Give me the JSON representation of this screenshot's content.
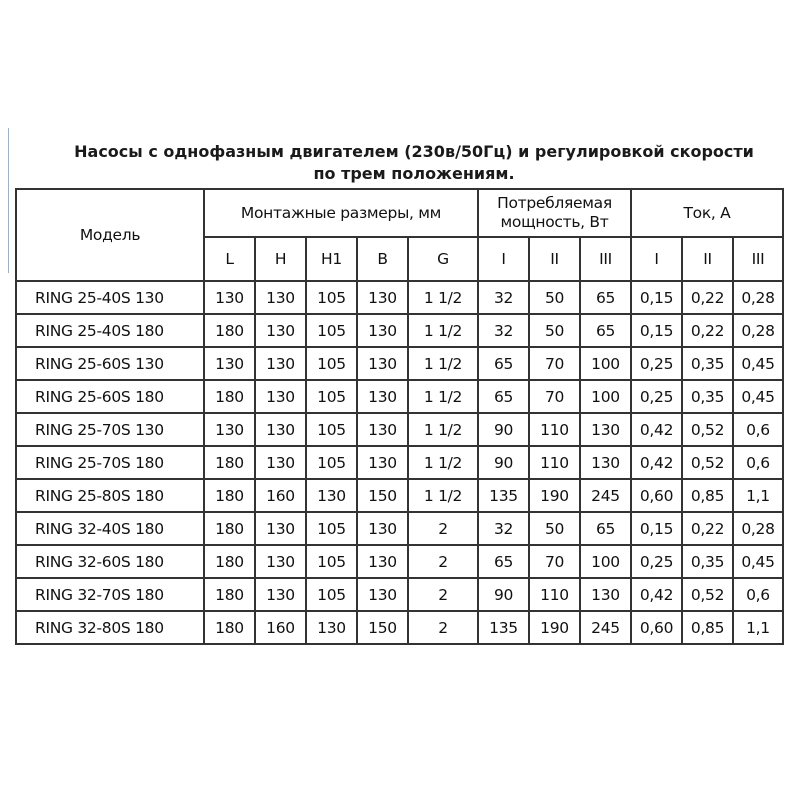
{
  "title": [
    "Насосы с однофазным двигателем (230в/50Гц) и регулировкой скорости",
    "по трем положениям."
  ],
  "headers": {
    "model": "Модель",
    "dims": "Монтажные размеры, мм",
    "power": [
      "Потребляемая",
      "мощность, Вт"
    ],
    "current": "Ток, А",
    "sub": [
      "L",
      "H",
      "H1",
      "B",
      "G",
      "I",
      "II",
      "III",
      "I",
      "II",
      "III"
    ]
  },
  "rows": [
    [
      "RING 25-40S 130",
      "130",
      "130",
      "105",
      "130",
      "1 1/2",
      "32",
      "50",
      "65",
      "0,15",
      "0,22",
      "0,28"
    ],
    [
      "RING 25-40S 180",
      "180",
      "130",
      "105",
      "130",
      "1 1/2",
      "32",
      "50",
      "65",
      "0,15",
      "0,22",
      "0,28"
    ],
    [
      "RING 25-60S 130",
      "130",
      "130",
      "105",
      "130",
      "1 1/2",
      "65",
      "70",
      "100",
      "0,25",
      "0,35",
      "0,45"
    ],
    [
      "RING 25-60S 180",
      "180",
      "130",
      "105",
      "130",
      "1 1/2",
      "65",
      "70",
      "100",
      "0,25",
      "0,35",
      "0,45"
    ],
    [
      "RING 25-70S 130",
      "130",
      "130",
      "105",
      "130",
      "1 1/2",
      "90",
      "110",
      "130",
      "0,42",
      "0,52",
      "0,6"
    ],
    [
      "RING 25-70S 180",
      "180",
      "130",
      "105",
      "130",
      "1 1/2",
      "90",
      "110",
      "130",
      "0,42",
      "0,52",
      "0,6"
    ],
    [
      "RING 25-80S 180",
      "180",
      "160",
      "130",
      "150",
      "1 1/2",
      "135",
      "190",
      "245",
      "0,60",
      "0,85",
      "1,1"
    ],
    [
      "RING 32-40S 180",
      "180",
      "130",
      "105",
      "130",
      "2",
      "32",
      "50",
      "65",
      "0,15",
      "0,22",
      "0,28"
    ],
    [
      "RING 32-60S 180",
      "180",
      "130",
      "105",
      "130",
      "2",
      "65",
      "70",
      "100",
      "0,25",
      "0,35",
      "0,45"
    ],
    [
      "RING 32-70S 180",
      "180",
      "130",
      "105",
      "130",
      "2",
      "90",
      "110",
      "130",
      "0,42",
      "0,52",
      "0,6"
    ],
    [
      "RING 32-80S 180",
      "180",
      "160",
      "130",
      "150",
      "2",
      "135",
      "190",
      "245",
      "0,60",
      "0,85",
      "1,1"
    ]
  ]
}
